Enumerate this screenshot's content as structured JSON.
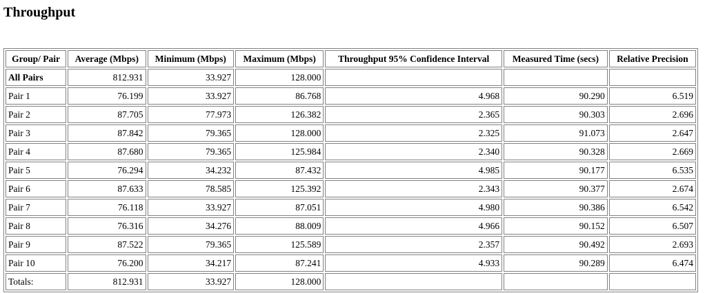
{
  "header": {
    "title": "Throughput"
  },
  "table": {
    "columns": [
      "Group/ Pair",
      "Average (Mbps)",
      "Minimum (Mbps)",
      "Maximum (Mbps)",
      "Throughput 95% Confidence Interval",
      "Measured Time (secs)",
      "Relative Precision"
    ],
    "rows": [
      [
        "All Pairs",
        "812.931",
        "33.927",
        "128.000"
      ],
      [
        "Pair 1",
        "76.199",
        "33.927",
        "86.768",
        "4.968",
        "90.290",
        "6.519"
      ],
      [
        "Pair 2",
        "87.705",
        "77.973",
        "126.382",
        "2.365",
        "90.303",
        "2.696"
      ],
      [
        "Pair 3",
        "87.842",
        "79.365",
        "128.000",
        "2.325",
        "91.073",
        "2.647"
      ],
      [
        "Pair 4",
        "87.680",
        "79.365",
        "125.984",
        "2.340",
        "90.328",
        "2.669"
      ],
      [
        "Pair 5",
        "76.294",
        "34.232",
        "87.432",
        "4.985",
        "90.177",
        "6.535"
      ],
      [
        "Pair 6",
        "87.633",
        "78.585",
        "125.392",
        "2.343",
        "90.377",
        "2.674"
      ],
      [
        "Pair 7",
        "76.118",
        "33.927",
        "87.051",
        "4.980",
        "90.386",
        "6.542"
      ],
      [
        "Pair 8",
        "76.316",
        "34.276",
        "88.009",
        "4.966",
        "90.152",
        "6.507"
      ],
      [
        "Pair 9",
        "87.522",
        "79.365",
        "125.589",
        "2.357",
        "90.492",
        "2.693"
      ],
      [
        "Pair 10",
        "76.200",
        "34.217",
        "87.241",
        "4.933",
        "90.289",
        "6.474"
      ],
      [
        "Totals:",
        "812.931",
        "33.927",
        "128.000"
      ]
    ]
  }
}
